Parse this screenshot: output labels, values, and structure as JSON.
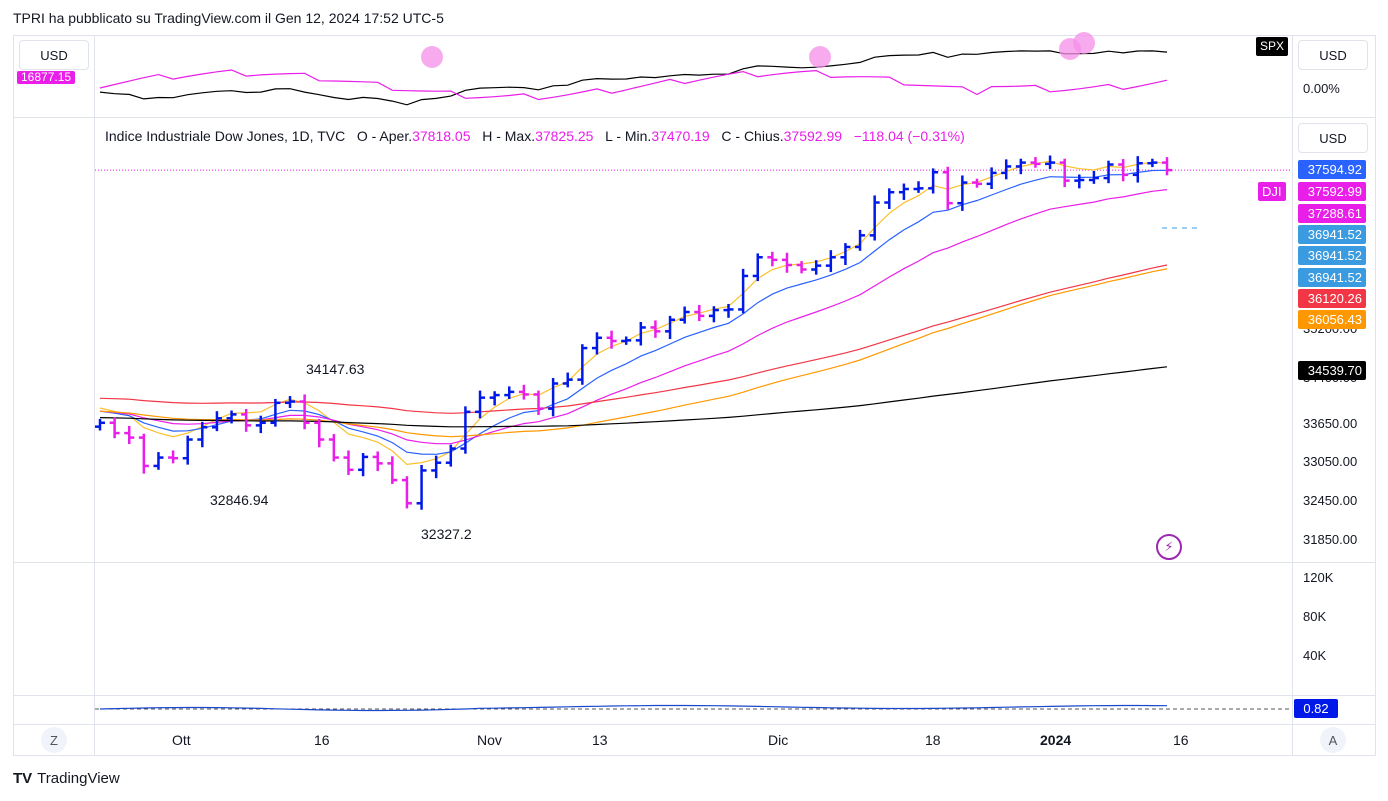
{
  "header": {
    "text": "TPRI ha pubblicato su TradingView.com il Gen 12, 2024 17:52 UTC-5"
  },
  "top_pane": {
    "left_usd": "USD",
    "spx_tag": "SPX",
    "right_usd": "USD",
    "right_pct": "0.00%",
    "left_partial_value": "16877.15"
  },
  "main_pane": {
    "right_usd": "USD",
    "legend": {
      "symbol": "Indice Industriale Dow Jones, 1D, TVC",
      "open_label": "O - Aper.",
      "open": "37818.05",
      "high_label": "H - Max.",
      "high": "37825.25",
      "low_label": "L - Min.",
      "low": "37470.19",
      "close_label": "C - Chius.",
      "close": "37592.99",
      "change": "−118.04 (−0.31%)"
    },
    "price_tags": [
      {
        "text": "37594.92",
        "color": "#2962ff"
      },
      {
        "text": "37592.99",
        "color": "#e91ee9"
      },
      {
        "text": "37288.61",
        "color": "#e91ee9"
      },
      {
        "text": "36941.52",
        "color": "#3b9be0"
      },
      {
        "text": "36941.52",
        "color": "#3b9be0"
      },
      {
        "text": "36941.52",
        "color": "#3b9be0"
      },
      {
        "text": "36120.26",
        "color": "#f23645"
      },
      {
        "text": "36056.43",
        "color": "#ff9800"
      },
      {
        "text": "34539.70",
        "color": "#000000"
      }
    ],
    "dji_tag": "DJI",
    "axis_ticks": [
      "33650.00",
      "33050.00",
      "32450.00",
      "31850.00"
    ],
    "partial_ticks": [
      "35200.00",
      "34400.00"
    ],
    "annotations": [
      {
        "text": "34147.63"
      },
      {
        "text": "32846.94"
      },
      {
        "text": "32327.2"
      }
    ]
  },
  "volume_pane": {
    "ticks": [
      "120K",
      "80K",
      "40K"
    ]
  },
  "osc_pane": {
    "tag": "0.82"
  },
  "x_axis": {
    "labels": [
      "Ott",
      "16",
      "Nov",
      "13",
      "Dic",
      "18",
      "2024",
      "16"
    ]
  },
  "buttons": {
    "z": "Z",
    "a": "A"
  },
  "logo": {
    "text": "TradingView"
  },
  "chart_data": {
    "type": "bar",
    "title": "Indice Industriale Dow Jones, 1D, TVC",
    "y_range": [
      31700,
      37900
    ],
    "x_labels": [
      "Ott",
      "16",
      "Nov",
      "13",
      "Dic",
      "18",
      "2024",
      "16"
    ],
    "ohlc_close_series": [
      {
        "date": "2023-09-28",
        "close": 33670,
        "up": true
      },
      {
        "date": "2023-09-29",
        "close": 33510,
        "up": false
      },
      {
        "date": "2023-10-02",
        "close": 33440,
        "up": false
      },
      {
        "date": "2023-10-03",
        "close": 33000,
        "up": false
      },
      {
        "date": "2023-10-04",
        "close": 33130,
        "up": true
      },
      {
        "date": "2023-10-05",
        "close": 33120,
        "up": false
      },
      {
        "date": "2023-10-06",
        "close": 33410,
        "up": true
      },
      {
        "date": "2023-10-09",
        "close": 33600,
        "up": true
      },
      {
        "date": "2023-10-10",
        "close": 33740,
        "up": true
      },
      {
        "date": "2023-10-11",
        "close": 33800,
        "up": true
      },
      {
        "date": "2023-10-12",
        "close": 33630,
        "up": false
      },
      {
        "date": "2023-10-13",
        "close": 33670,
        "up": true
      },
      {
        "date": "2023-10-16",
        "close": 33980,
        "up": true
      },
      {
        "date": "2023-10-17",
        "close": 34000,
        "up": true
      },
      {
        "date": "2023-10-18",
        "close": 33670,
        "up": false
      },
      {
        "date": "2023-10-19",
        "close": 33410,
        "up": false
      },
      {
        "date": "2023-10-20",
        "close": 33130,
        "up": false
      },
      {
        "date": "2023-10-23",
        "close": 32940,
        "up": false
      },
      {
        "date": "2023-10-24",
        "close": 33140,
        "up": true
      },
      {
        "date": "2023-10-25",
        "close": 33040,
        "up": false
      },
      {
        "date": "2023-10-26",
        "close": 32780,
        "up": false
      },
      {
        "date": "2023-10-27",
        "close": 32420,
        "up": false
      },
      {
        "date": "2023-10-30",
        "close": 32930,
        "up": true
      },
      {
        "date": "2023-10-31",
        "close": 33050,
        "up": true
      },
      {
        "date": "2023-11-01",
        "close": 33270,
        "up": true
      },
      {
        "date": "2023-11-02",
        "close": 33840,
        "up": true
      },
      {
        "date": "2023-11-03",
        "close": 34060,
        "up": true
      },
      {
        "date": "2023-11-06",
        "close": 34100,
        "up": true
      },
      {
        "date": "2023-11-07",
        "close": 34150,
        "up": true
      },
      {
        "date": "2023-11-08",
        "close": 34110,
        "up": false
      },
      {
        "date": "2023-11-09",
        "close": 33890,
        "up": false
      },
      {
        "date": "2023-11-10",
        "close": 34280,
        "up": true
      },
      {
        "date": "2023-11-13",
        "close": 34340,
        "up": true
      },
      {
        "date": "2023-11-14",
        "close": 34830,
        "up": true
      },
      {
        "date": "2023-11-15",
        "close": 34990,
        "up": true
      },
      {
        "date": "2023-11-16",
        "close": 34940,
        "up": false
      },
      {
        "date": "2023-11-17",
        "close": 34950,
        "up": true
      },
      {
        "date": "2023-11-20",
        "close": 35150,
        "up": true
      },
      {
        "date": "2023-11-21",
        "close": 35090,
        "up": false
      },
      {
        "date": "2023-11-22",
        "close": 35270,
        "up": true
      },
      {
        "date": "2023-11-24",
        "close": 35390,
        "up": true
      },
      {
        "date": "2023-11-27",
        "close": 35330,
        "up": false
      },
      {
        "date": "2023-11-28",
        "close": 35420,
        "up": true
      },
      {
        "date": "2023-11-29",
        "close": 35430,
        "up": true
      },
      {
        "date": "2023-11-30",
        "close": 35950,
        "up": true
      },
      {
        "date": "2023-12-01",
        "close": 36240,
        "up": true
      },
      {
        "date": "2023-12-04",
        "close": 36200,
        "up": false
      },
      {
        "date": "2023-12-05",
        "close": 36120,
        "up": false
      },
      {
        "date": "2023-12-06",
        "close": 36050,
        "up": false
      },
      {
        "date": "2023-12-07",
        "close": 36110,
        "up": true
      },
      {
        "date": "2023-12-08",
        "close": 36240,
        "up": true
      },
      {
        "date": "2023-12-11",
        "close": 36400,
        "up": true
      },
      {
        "date": "2023-12-12",
        "close": 36580,
        "up": true
      },
      {
        "date": "2023-12-13",
        "close": 37090,
        "up": true
      },
      {
        "date": "2023-12-14",
        "close": 37250,
        "up": true
      },
      {
        "date": "2023-12-15",
        "close": 37300,
        "up": true
      },
      {
        "date": "2023-12-18",
        "close": 37310,
        "up": true
      },
      {
        "date": "2023-12-19",
        "close": 37560,
        "up": true
      },
      {
        "date": "2023-12-20",
        "close": 37080,
        "up": false
      },
      {
        "date": "2023-12-21",
        "close": 37400,
        "up": true
      },
      {
        "date": "2023-12-22",
        "close": 37380,
        "up": false
      },
      {
        "date": "2023-12-26",
        "close": 37550,
        "up": true
      },
      {
        "date": "2023-12-27",
        "close": 37650,
        "up": true
      },
      {
        "date": "2023-12-28",
        "close": 37710,
        "up": true
      },
      {
        "date": "2023-12-29",
        "close": 37690,
        "up": false
      },
      {
        "date": "2024-01-02",
        "close": 37710,
        "up": true
      },
      {
        "date": "2024-01-03",
        "close": 37430,
        "up": false
      },
      {
        "date": "2024-01-04",
        "close": 37440,
        "up": true
      },
      {
        "date": "2024-01-05",
        "close": 37470,
        "up": true
      },
      {
        "date": "2024-01-08",
        "close": 37680,
        "up": true
      },
      {
        "date": "2024-01-09",
        "close": 37520,
        "up": false
      },
      {
        "date": "2024-01-10",
        "close": 37700,
        "up": true
      },
      {
        "date": "2024-01-11",
        "close": 37710,
        "up": true
      },
      {
        "date": "2024-01-12",
        "close": 37593,
        "up": false
      }
    ],
    "moving_averages": [
      {
        "color": "#fbc02d",
        "start": 33900,
        "end": 37700
      },
      {
        "color": "#2962ff",
        "start": 33850,
        "end": 37590
      },
      {
        "color": "#e91ee9",
        "start": 33850,
        "end": 37290
      },
      {
        "color": "#ff9800",
        "start": 33850,
        "end": 36060
      },
      {
        "color": "#f23645",
        "start": 34050,
        "end": 36120
      },
      {
        "color": "#000000",
        "start": 33750,
        "end": 34540
      }
    ]
  }
}
